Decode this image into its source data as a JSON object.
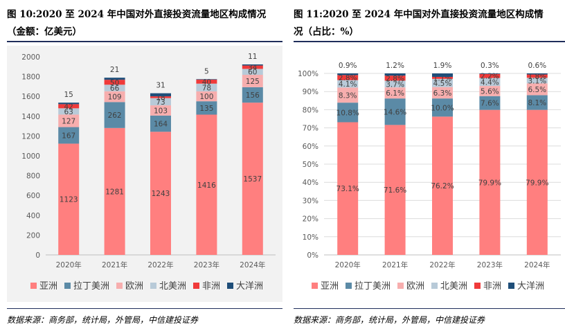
{
  "left": {
    "title_line1": "图 10:2020 至 2024 年中国对外直接投资流量地区构成情况",
    "title_line2": "（金额：亿美元）",
    "source": "数据来源：商务部，统计局，外管局，中信建投证券"
  },
  "right": {
    "title_line1": "图 11:2020 至 2024 年中国对外直接投资流量地区构成情",
    "title_line2": "况（占比：%）",
    "source": "数据来源：商务部，统计局，外管局，中信建投证券"
  },
  "colors": {
    "亚洲": "#ff7f7f",
    "拉丁美洲": "#5b8aa6",
    "欧洲": "#f7aeae",
    "北美洲": "#b8cad8",
    "非洲": "#f03a3a",
    "大洋洲": "#1f4e79"
  },
  "chart_data": [
    {
      "type": "bar",
      "stacked": true,
      "categories": [
        "2020年",
        "2021年",
        "2022年",
        "2023年",
        "2024年"
      ],
      "ylim": [
        0,
        2000
      ],
      "yticks": [
        "0",
        "200",
        "400",
        "600",
        "800",
        "1000",
        "1200",
        "1400",
        "1600",
        "1800",
        "2000"
      ],
      "legend_position": "bottom",
      "series": [
        {
          "name": "亚洲",
          "values": [
            1123,
            1281,
            1243,
            1416,
            1537
          ]
        },
        {
          "name": "拉丁美洲",
          "values": [
            167,
            262,
            164,
            135,
            156
          ]
        },
        {
          "name": "欧洲",
          "values": [
            127,
            109,
            103,
            100,
            125
          ]
        },
        {
          "name": "北美洲",
          "values": [
            63,
            66,
            73,
            78,
            60
          ]
        },
        {
          "name": "非洲",
          "values": [
            42,
            50,
            18,
            40,
            34
          ]
        },
        {
          "name": "大洋洲",
          "values": [
            15,
            21,
            31,
            5,
            11
          ]
        }
      ]
    },
    {
      "type": "bar",
      "stacked": true,
      "categories": [
        "2020年",
        "2021年",
        "2022年",
        "2023年",
        "2024年"
      ],
      "ylim": [
        0,
        100
      ],
      "yticks": [
        "0%",
        "10%",
        "20%",
        "30%",
        "40%",
        "50%",
        "60%",
        "70%",
        "80%",
        "90%",
        "100%"
      ],
      "legend_position": "bottom",
      "series": [
        {
          "name": "亚洲",
          "values": [
            73.1,
            71.6,
            76.2,
            79.9,
            79.9
          ]
        },
        {
          "name": "拉丁美洲",
          "values": [
            10.8,
            14.6,
            10.0,
            7.6,
            8.1
          ]
        },
        {
          "name": "欧洲",
          "values": [
            8.3,
            6.1,
            6.3,
            5.6,
            6.5
          ]
        },
        {
          "name": "北美洲",
          "values": [
            4.1,
            3.7,
            4.5,
            4.4,
            3.1
          ]
        },
        {
          "name": "非洲",
          "values": [
            2.8,
            2.8,
            1.1,
            2.2,
            1.8
          ]
        },
        {
          "name": "大洋洲",
          "values": [
            0.9,
            1.2,
            1.9,
            0.3,
            0.6
          ]
        }
      ],
      "labels": {
        "亚洲": [
          "73.1%",
          "71.6%",
          "76.2%",
          "79.9%",
          "79.9%"
        ],
        "拉丁美洲": [
          "10.8%",
          "14.6%",
          "10.0%",
          "7.6%",
          "8.1%"
        ],
        "欧洲": [
          "8.3%",
          "6.1%",
          "6.3%",
          "5.6%",
          "6.5%"
        ],
        "北美洲": [
          "4.1%",
          "3.7%",
          "4.5%",
          "4.4%",
          "3.1%"
        ],
        "非洲": [
          "2.8%",
          "2.8%",
          "1.1%",
          "2.2%",
          "1.8%"
        ],
        "大洋洲": [
          "0.9%",
          "1.2%",
          "1.9%",
          "0.3%",
          "0.6%"
        ]
      }
    }
  ]
}
